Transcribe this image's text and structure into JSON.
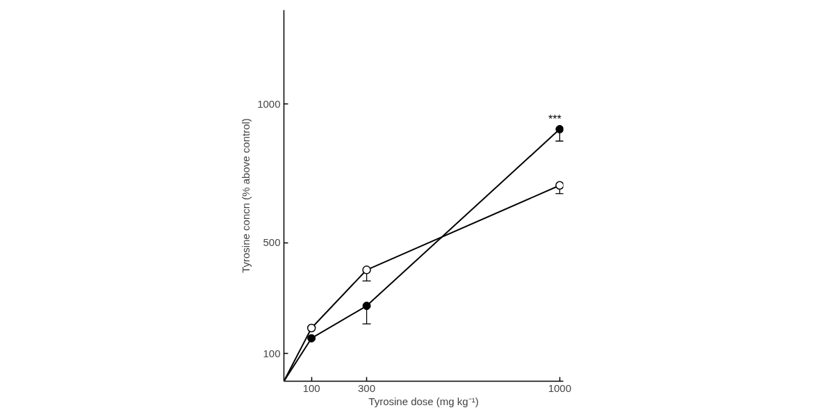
{
  "chart_data": {
    "type": "line",
    "xlabel": "Tyrosine dose (mg kg⁻¹)",
    "ylabel": "Tyrosine concn (% above control)",
    "x": [
      0,
      100,
      300,
      1000
    ],
    "series": [
      {
        "color": "#000000",
        "marker": "circle_open",
        "values": [
          0,
          192,
          402,
          707
        ],
        "errors": [
          null,
          null,
          [
            362,
            402
          ],
          [
            677,
            707
          ]
        ]
      },
      {
        "color": "#000000",
        "marker": "circle",
        "values": [
          0,
          155,
          272,
          910
        ],
        "errors": [
          null,
          null,
          [
            207,
            272
          ],
          [
            867,
            910
          ]
        ]
      }
    ],
    "annotations": [
      {
        "text": "***",
        "x": 1000,
        "y": 910
      }
    ],
    "xlim": [
      0,
      1013
    ],
    "ylim": [
      0,
      1340
    ],
    "xticks": [
      100,
      300,
      1000
    ],
    "yticks": [
      100,
      500,
      1000
    ],
    "grid": false,
    "line_style": "solid"
  }
}
